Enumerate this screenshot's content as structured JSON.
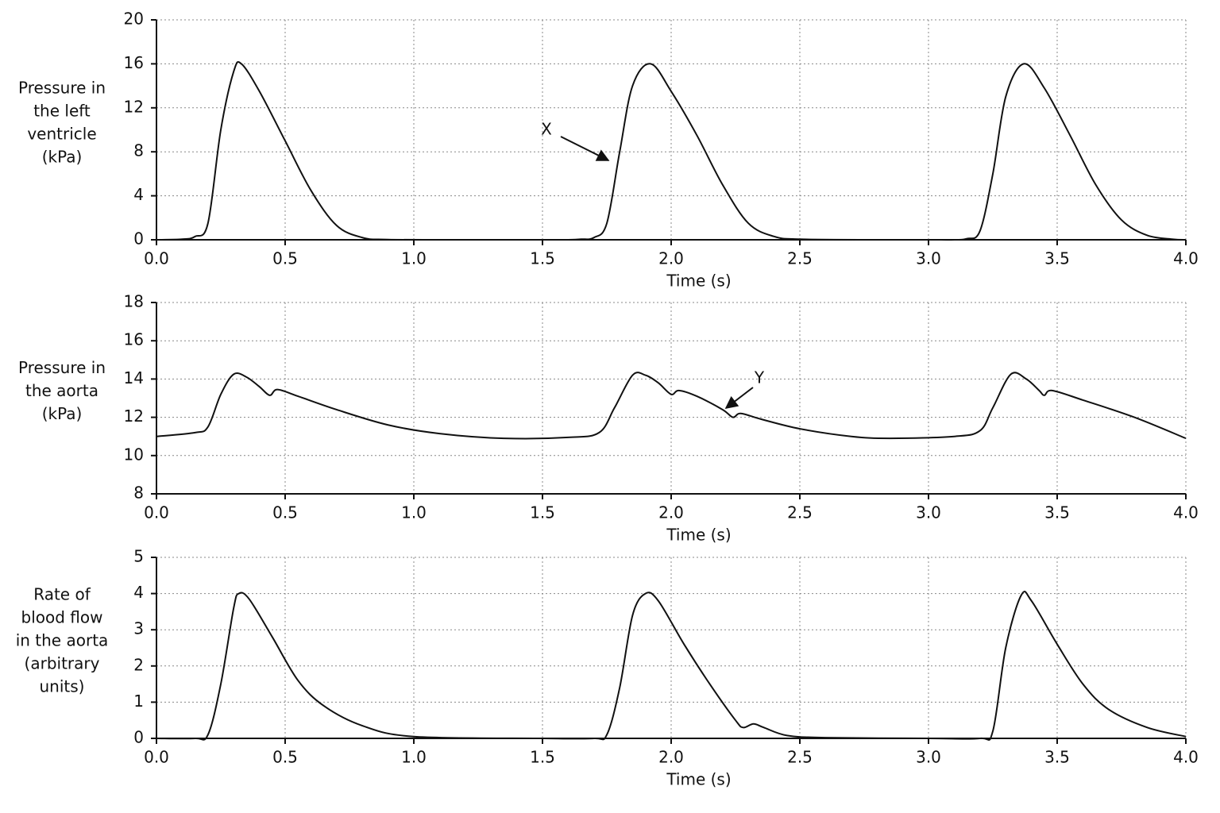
{
  "chart_data": [
    {
      "type": "line",
      "ylabel": [
        "Pressure in",
        "the left",
        "ventricle",
        "(kPa)"
      ],
      "xlabel": "Time (s)",
      "annotations": [
        "X"
      ],
      "x": [
        0,
        0.1,
        0.15,
        0.2,
        0.25,
        0.3,
        0.33,
        0.4,
        0.5,
        0.6,
        0.7,
        0.8,
        0.9,
        1.2,
        1.5,
        1.6,
        1.65,
        1.7,
        1.75,
        1.8,
        1.85,
        1.92,
        2.0,
        2.1,
        2.2,
        2.3,
        2.4,
        2.5,
        2.8,
        3.0,
        3.1,
        3.15,
        3.2,
        3.25,
        3.3,
        3.37,
        3.45,
        3.55,
        3.65,
        3.75,
        3.85,
        3.95,
        4.0
      ],
      "series": [
        {
          "color": "#111111",
          "values": [
            0,
            0.05,
            0.3,
            1.5,
            10,
            15.3,
            16,
            13.5,
            9,
            4.5,
            1.3,
            0.2,
            0.02,
            0,
            0,
            0,
            0.05,
            0.2,
            1.5,
            8,
            14,
            16,
            13.5,
            9.5,
            5,
            1.5,
            0.3,
            0.05,
            0,
            0,
            0,
            0.1,
            0.8,
            6,
            13,
            16,
            13.8,
            9.5,
            5,
            1.8,
            0.4,
            0.05,
            0
          ]
        }
      ],
      "xlim": [
        0,
        4
      ],
      "ylim": [
        0,
        20
      ],
      "xticks": [
        {
          "value": 0,
          "label": "0.0"
        },
        0.5,
        {
          "value": 1,
          "label": "1.0"
        },
        1.5,
        {
          "value": 2,
          "label": "2.0"
        },
        2.5,
        {
          "value": 3,
          "label": "3.0"
        },
        3.5,
        {
          "value": 4,
          "label": "4.0"
        }
      ],
      "yticks": [
        0,
        4,
        8,
        12,
        16,
        20
      ],
      "grid": true
    },
    {
      "type": "line",
      "ylabel": [
        "Pressure in",
        "the aorta",
        "(kPa)"
      ],
      "xlabel": "Time (s)",
      "annotations": [
        "Y"
      ],
      "x": [
        0,
        0.15,
        0.2,
        0.25,
        0.3,
        0.35,
        0.4,
        0.44,
        0.47,
        0.55,
        0.7,
        0.9,
        1.1,
        1.35,
        1.6,
        1.72,
        1.78,
        1.85,
        1.9,
        1.95,
        2.0,
        2.03,
        2.1,
        2.2,
        2.24,
        2.27,
        2.35,
        2.5,
        2.7,
        2.85,
        3.1,
        3.2,
        3.25,
        3.32,
        3.38,
        3.43,
        3.45,
        3.48,
        3.6,
        3.8,
        4.0
      ],
      "series": [
        {
          "color": "#111111",
          "values": [
            11.0,
            11.2,
            11.5,
            13.2,
            14.25,
            14.1,
            13.6,
            13.15,
            13.45,
            13.1,
            12.4,
            11.6,
            11.15,
            10.9,
            10.95,
            11.2,
            12.5,
            14.2,
            14.2,
            13.8,
            13.2,
            13.4,
            13.1,
            12.4,
            12.0,
            12.2,
            11.9,
            11.4,
            11.0,
            10.9,
            11.0,
            11.3,
            12.5,
            14.25,
            14.0,
            13.4,
            13.15,
            13.4,
            12.9,
            12.0,
            10.9
          ]
        }
      ],
      "xlim": [
        0,
        4
      ],
      "ylim": [
        8,
        18
      ],
      "xticks": [
        {
          "value": 0,
          "label": "0.0"
        },
        0.5,
        {
          "value": 1,
          "label": "1.0"
        },
        1.5,
        {
          "value": 2,
          "label": "2.0"
        },
        2.5,
        {
          "value": 3,
          "label": "3.0"
        },
        3.5,
        {
          "value": 4,
          "label": "4.0"
        }
      ],
      "yticks": [
        8,
        10,
        12,
        14,
        16,
        18
      ],
      "grid": true
    },
    {
      "type": "line",
      "ylabel": [
        "Rate of",
        "blood flow",
        "in the aorta",
        "(arbitrary",
        "units)"
      ],
      "xlabel": "Time (s)",
      "annotations": [],
      "x": [
        0,
        0.15,
        0.2,
        0.25,
        0.3,
        0.32,
        0.36,
        0.45,
        0.55,
        0.65,
        0.8,
        1.0,
        1.5,
        1.7,
        1.75,
        1.8,
        1.85,
        1.9,
        1.95,
        2.05,
        2.15,
        2.25,
        2.28,
        2.32,
        2.36,
        2.45,
        2.6,
        3.0,
        3.2,
        3.25,
        3.3,
        3.36,
        3.4,
        3.5,
        3.6,
        3.7,
        3.85,
        4.0
      ],
      "series": [
        {
          "color": "#111111",
          "values": [
            0,
            0,
            0.1,
            1.5,
            3.6,
            4.0,
            3.85,
            2.8,
            1.6,
            0.9,
            0.35,
            0.05,
            0,
            0,
            0.1,
            1.4,
            3.4,
            4.0,
            3.8,
            2.6,
            1.5,
            0.5,
            0.3,
            0.4,
            0.3,
            0.08,
            0.02,
            0,
            0,
            0.2,
            2.5,
            3.95,
            3.8,
            2.6,
            1.5,
            0.8,
            0.3,
            0.05
          ]
        }
      ],
      "xlim": [
        0,
        4
      ],
      "ylim": [
        0,
        5
      ],
      "xticks": [
        {
          "value": 0,
          "label": "0.0"
        },
        0.5,
        {
          "value": 1,
          "label": "1.0"
        },
        1.5,
        {
          "value": 2,
          "label": "2.0"
        },
        2.5,
        {
          "value": 3,
          "label": "3.0"
        },
        3.5,
        {
          "value": 4,
          "label": "4.0"
        }
      ],
      "yticks": [
        0,
        1,
        2,
        3,
        4,
        5
      ],
      "grid": true
    }
  ]
}
